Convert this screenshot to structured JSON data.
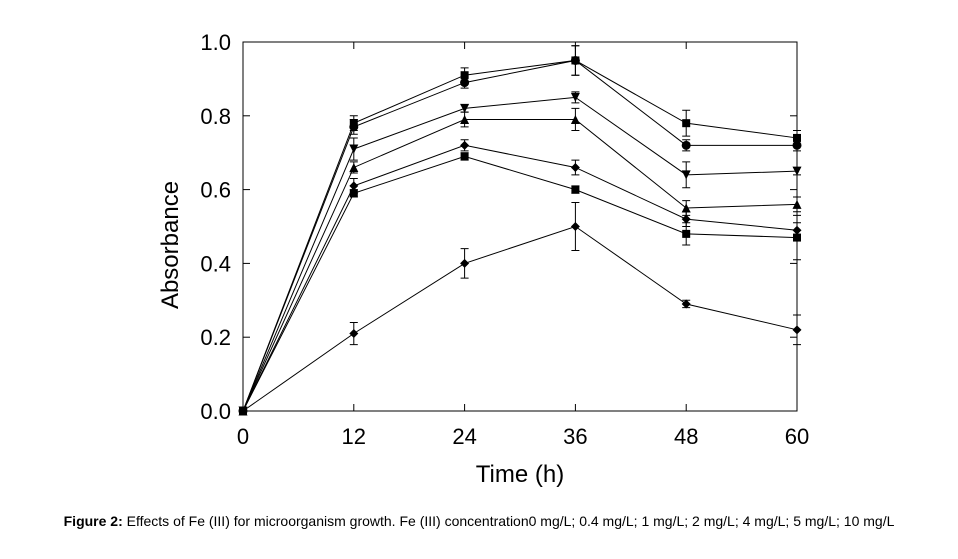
{
  "chart_data": {
    "type": "line",
    "xlabel": "Time (h)",
    "ylabel": "Absorbance",
    "x": [
      0,
      12,
      24,
      36,
      48,
      60
    ],
    "xlim": [
      0,
      60
    ],
    "xticks": [
      0,
      12,
      24,
      36,
      48,
      60
    ],
    "ylim": [
      0,
      1
    ],
    "yticks": [
      {
        "value": 0,
        "label": "0.0"
      },
      0.2,
      0.4,
      0.6,
      0.8,
      {
        "value": 1,
        "label": "1.0"
      }
    ],
    "grid": false,
    "series": [
      {
        "color": "#000000",
        "marker": "diamond",
        "values": [
          0,
          0.21,
          0.4,
          0.5,
          0.29,
          0.22
        ],
        "errors": [
          0,
          0.03,
          0.04,
          0.065,
          0.01,
          0.04
        ]
      },
      {
        "color": "#000000",
        "marker": "square",
        "values": [
          0,
          0.59,
          0.69,
          0.6,
          0.48,
          0.47
        ],
        "errors": [
          0,
          0.01,
          0.01,
          0.01,
          0.03,
          0.06
        ]
      },
      {
        "color": "#000000",
        "marker": "diamond",
        "values": [
          0,
          0.61,
          0.72,
          0.66,
          0.52,
          0.49
        ],
        "errors": [
          0,
          0.02,
          0.015,
          0.02,
          0.02,
          0.02
        ]
      },
      {
        "color": "#000000",
        "marker": "triangle-up",
        "values": [
          0,
          0.66,
          0.79,
          0.79,
          0.55,
          0.56
        ],
        "errors": [
          0,
          0.015,
          0.02,
          0.03,
          0.02,
          0.02
        ]
      },
      {
        "color": "#000000",
        "marker": "triangle-down",
        "values": [
          0,
          0.71,
          0.82,
          0.85,
          0.64,
          0.65
        ],
        "errors": [
          0,
          0.03,
          0.01,
          0.015,
          0.035,
          0.01
        ]
      },
      {
        "color": "#000000",
        "marker": "circle",
        "values": [
          0,
          0.77,
          0.89,
          0.95,
          0.72,
          0.72
        ],
        "errors": [
          0,
          0.02,
          0.015,
          0.04,
          0.015,
          0.015
        ]
      },
      {
        "color": "#000000",
        "marker": "square",
        "values": [
          0,
          0.78,
          0.91,
          0.95,
          0.78,
          0.74
        ],
        "errors": [
          0,
          0.02,
          0.02,
          0.04,
          0.035,
          0.02
        ]
      }
    ]
  },
  "caption": {
    "label": "Figure 2:",
    "text": "Effects of Fe (III) for microorganism growth. Fe (III) concentration0 mg/L; 0.4 mg/L; 1 mg/L; 2 mg/L; 4 mg/L; 5 mg/L; 10 mg/L"
  }
}
